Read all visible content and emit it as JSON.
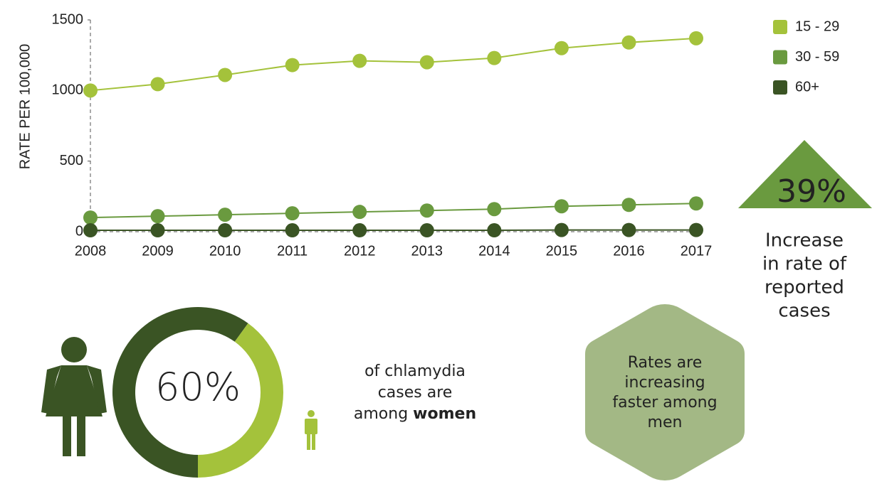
{
  "chart_data": [
    {
      "type": "line",
      "y_label": "RATE PER 100,000",
      "x": [
        2008,
        2009,
        2010,
        2011,
        2012,
        2013,
        2014,
        2015,
        2016,
        2017
      ],
      "xlim": [
        2008,
        2017
      ],
      "xticks": [
        2008,
        2009,
        2010,
        2011,
        2012,
        2013,
        2014,
        2015,
        2016,
        2017
      ],
      "ylim": [
        0,
        1500
      ],
      "yticks": [
        0,
        500,
        1000,
        1500
      ],
      "legend": "top-right",
      "series": [
        {
          "name": "15 - 29",
          "color": "#a4c23b",
          "values": [
            1000,
            1045,
            1110,
            1180,
            1210,
            1200,
            1230,
            1300,
            1340,
            1370
          ]
        },
        {
          "name": "30 - 59",
          "color": "#6a9a3f",
          "values": [
            100,
            110,
            120,
            130,
            140,
            150,
            160,
            180,
            190,
            200
          ]
        },
        {
          "name": "60+",
          "color": "#3a5424",
          "values": [
            10,
            10,
            10,
            10,
            10,
            10,
            10,
            12,
            12,
            12
          ]
        }
      ]
    },
    {
      "type": "pie",
      "values": [
        60,
        40
      ],
      "value_labels": [
        "60%",
        null
      ],
      "colors": [
        "#3a5424",
        "#a4c23b"
      ],
      "text_lines": [
        "of chlamydia",
        "cases are",
        "among"
      ],
      "emphasis": "women"
    }
  ],
  "arrow_callout": {
    "value": "39%",
    "lines": [
      "Increase",
      "in rate of",
      "reported",
      "cases"
    ]
  },
  "hex_callout": {
    "lines": [
      "Rates are",
      "increasing",
      "faster among",
      "men"
    ]
  }
}
